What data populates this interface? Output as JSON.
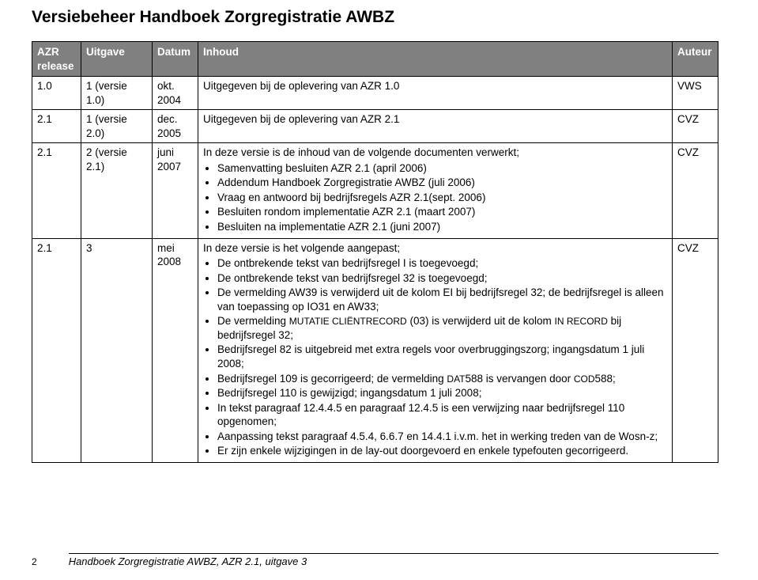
{
  "title": "Versiebeheer Handboek Zorgregistratie AWBZ",
  "headers": {
    "c1": "AZR release",
    "c2": "Uitgave",
    "c3": "Datum",
    "c4": "Inhoud",
    "c5": "Auteur"
  },
  "rows": [
    {
      "release": "1.0",
      "uitgave": "1 (versie 1.0)",
      "datum": "okt. 2004",
      "inhoud_lead": "Uitgegeven bij de oplevering van AZR 1.0",
      "bullets": [],
      "auteur": "VWS"
    },
    {
      "release": "2.1",
      "uitgave": "1 (versie 2.0)",
      "datum": "dec. 2005",
      "inhoud_lead": "Uitgegeven bij de oplevering van AZR 2.1",
      "bullets": [],
      "auteur": "CVZ"
    },
    {
      "release": "2.1",
      "uitgave": "2 (versie 2.1)",
      "datum": "juni 2007",
      "inhoud_lead": "In deze versie is de inhoud van de volgende documenten verwerkt;",
      "bullets": [
        "Samenvatting besluiten AZR 2.1 (april 2006)",
        "Addendum Handboek Zorgregistratie AWBZ (juli 2006)",
        "Vraag en antwoord bij bedrijfsregels AZR 2.1(sept. 2006)",
        "Besluiten rondom implementatie AZR 2.1 (maart 2007)",
        "Besluiten na implementatie AZR 2.1 (juni 2007)"
      ],
      "auteur": "CVZ"
    },
    {
      "release": "2.1",
      "uitgave": "3",
      "datum": "mei 2008",
      "inhoud_lead": "In deze versie is het volgende aangepast;",
      "bullets_complex": [
        {
          "text": "De ontbrekende tekst van bedrijfsregel I is toegevoegd;"
        },
        {
          "text": "De ontbrekende tekst van bedrijfsregel 32 is toegevoegd;"
        },
        {
          "text": "De vermelding AW39 is verwijderd uit de kolom EI bij bedrijfsregel 32; de bedrijfsregel is alleen van toepassing op IO31 en AW33;"
        },
        {
          "prefix": "De vermelding ",
          "sc1": "MUTATIE CLIËNTRECORD",
          "mid": " (03) is verwijderd uit de kolom ",
          "sc2": "IN RECORD",
          "suffix": " bij bedrijfsregel 32;"
        },
        {
          "text": "Bedrijfsregel 82 is uitgebreid met extra regels voor overbruggingszorg; ingangsdatum 1 juli 2008;"
        },
        {
          "prefix": "Bedrijfsregel 109 is gecorrigeerd; de vermelding ",
          "sc1": "DAT",
          "mid": "588 is vervangen door ",
          "sc2": "COD",
          "suffix": "588;"
        },
        {
          "text": "Bedrijfsregel 110 is gewijzigd; ingangsdatum 1 juli 2008;"
        },
        {
          "text": "In tekst paragraaf 12.4.4.5 en paragraaf 12.4.5 is een verwijzing naar bedrijfsregel 110 opgenomen;"
        },
        {
          "text": "Aanpassing tekst paragraaf 4.5.4, 6.6.7 en 14.4.1 i.v.m. het in werking treden van de Wosn-z;"
        },
        {
          "text": "Er zijn enkele wijzigingen in de lay-out doorgevoerd en enkele typefouten gecorrigeerd."
        }
      ],
      "auteur": "CVZ"
    }
  ],
  "footer": {
    "page": "2",
    "text": "Handboek Zorgregistratie AWBZ, AZR 2.1, uitgave 3"
  }
}
